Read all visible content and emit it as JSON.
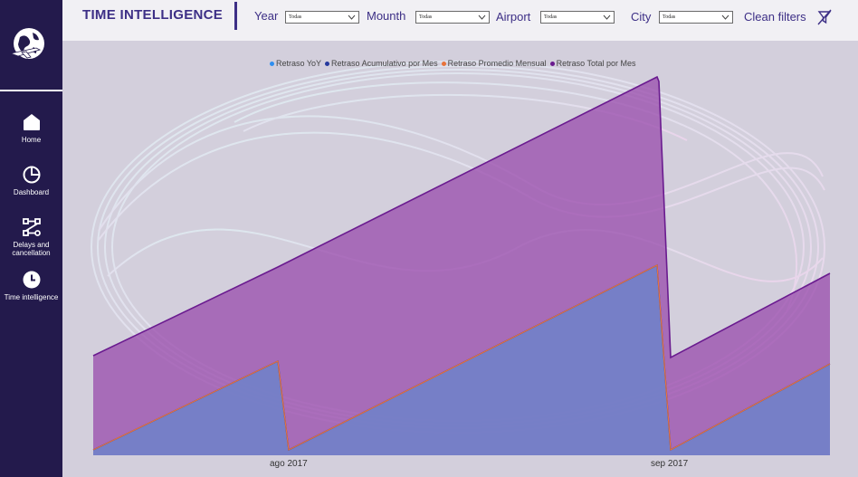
{
  "header": {
    "title": "TIME INTELLIGENCE",
    "filters": [
      {
        "label": "Year",
        "value": "Todas"
      },
      {
        "label": "Mounth",
        "value": "Todas"
      },
      {
        "label": "Airport",
        "value": "Todas"
      },
      {
        "label": "City",
        "value": "Todas"
      }
    ],
    "clean_label": "Clean filters"
  },
  "sidebar": {
    "items": [
      {
        "label": "Home",
        "icon": "home-icon"
      },
      {
        "label": "Dashboard",
        "icon": "pie-chart-icon"
      },
      {
        "label": "Delays and cancellation",
        "icon": "flow-icon"
      },
      {
        "label": "Time intelligence",
        "icon": "clock-icon"
      }
    ]
  },
  "chart_data": {
    "type": "area",
    "xlabel": "",
    "ylabel": "",
    "x_ticks": [
      "ago 2017",
      "sep 2017"
    ],
    "legend_position": "top",
    "series": [
      {
        "name": "Retraso YoY",
        "color": "#2f8ff0"
      },
      {
        "name": "Retraso Acumulativo por Mes",
        "color": "#263a9e"
      },
      {
        "name": "Retraso Promedio Mensual",
        "color": "#e8733a"
      },
      {
        "name": "Retraso Total por Mes",
        "color": "#6a1b8f"
      }
    ],
    "colors": {
      "accent": "#3d2f86",
      "sidebar": "#231a4c"
    }
  }
}
